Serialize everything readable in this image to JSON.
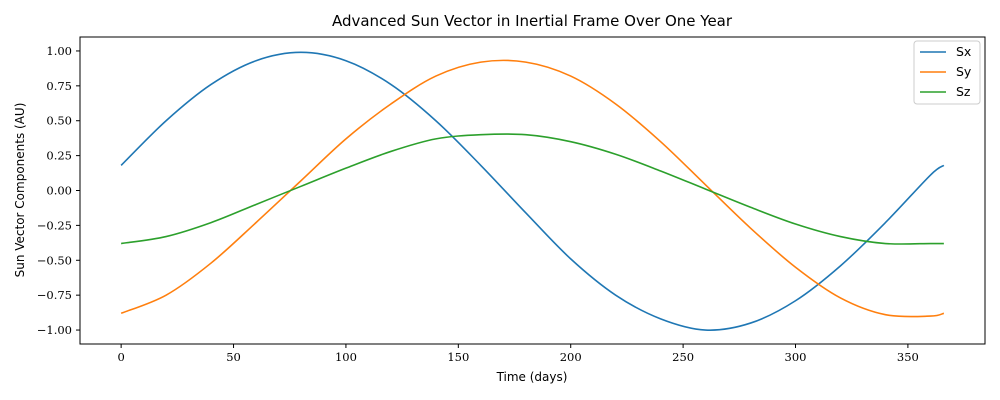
{
  "chart_data": {
    "type": "line",
    "title": "Advanced Sun Vector in Inertial Frame Over One Year",
    "xlabel": "Time (days)",
    "ylabel": "Sun Vector Components (AU)",
    "xlim": [
      -18.3,
      384.3
    ],
    "ylim": [
      -1.1,
      1.1
    ],
    "x_ticks": [
      0,
      50,
      100,
      150,
      200,
      250,
      300,
      350
    ],
    "x_tick_labels": [
      "0",
      "50",
      "100",
      "150",
      "200",
      "250",
      "300",
      "350"
    ],
    "y_ticks": [
      1.0,
      0.75,
      0.5,
      0.25,
      0.0,
      -0.25,
      -0.5,
      -0.75,
      -1.0
    ],
    "y_tick_labels": [
      "1.00",
      "0.75",
      "0.50",
      "0.25",
      "0.00",
      "−0.25",
      "−0.50",
      "−0.75",
      "−1.00"
    ],
    "grid": false,
    "legend_position": "top-right",
    "x": [
      0,
      20,
      40,
      60,
      80,
      100,
      120,
      140,
      160,
      180,
      200,
      220,
      240,
      260,
      280,
      300,
      320,
      340,
      360,
      366
    ],
    "series": [
      {
        "name": "Sx",
        "color": "#1f77b4",
        "values": [
          0.18,
          0.5,
          0.76,
          0.93,
          0.99,
          0.93,
          0.76,
          0.5,
          0.18,
          -0.16,
          -0.49,
          -0.75,
          -0.92,
          -1.0,
          -0.95,
          -0.79,
          -0.54,
          -0.23,
          0.11,
          0.18
        ]
      },
      {
        "name": "Sy",
        "color": "#ff7f0e",
        "values": [
          -0.88,
          -0.75,
          -0.52,
          -0.23,
          0.07,
          0.37,
          0.62,
          0.82,
          0.92,
          0.92,
          0.82,
          0.62,
          0.35,
          0.04,
          -0.27,
          -0.55,
          -0.77,
          -0.89,
          -0.9,
          -0.88
        ]
      },
      {
        "name": "Sz",
        "color": "#2ca02c",
        "values": [
          -0.38,
          -0.33,
          -0.23,
          -0.1,
          0.03,
          0.16,
          0.28,
          0.37,
          0.4,
          0.4,
          0.35,
          0.26,
          0.14,
          0.01,
          -0.12,
          -0.24,
          -0.33,
          -0.38,
          -0.38,
          -0.38
        ]
      }
    ]
  }
}
